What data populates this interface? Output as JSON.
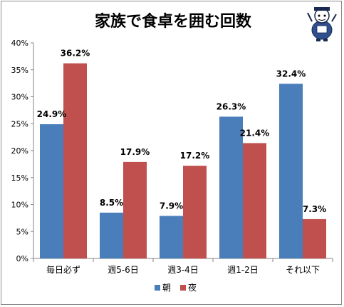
{
  "chart_data": {
    "type": "bar",
    "title": "家族で食卓を囲む回数",
    "categories": [
      "毎日必ず",
      "週5-6日",
      "週3-4日",
      "週1-2日",
      "それ以下"
    ],
    "series": [
      {
        "name": "朝",
        "values": [
          24.9,
          8.5,
          7.9,
          26.3,
          32.4
        ],
        "labels": [
          "24.9%",
          "8.5%",
          "7.9%",
          "26.3%",
          "32.4%"
        ],
        "color": "#4a7ebb"
      },
      {
        "name": "夜",
        "values": [
          36.2,
          17.9,
          17.2,
          21.4,
          7.3
        ],
        "labels": [
          "36.2%",
          "17.9%",
          "17.2%",
          "21.4%",
          "7.3%"
        ],
        "color": "#c0504d"
      }
    ],
    "ylim": [
      0,
      40
    ],
    "yticks": [
      "0%",
      "5%",
      "10%",
      "15%",
      "20%",
      "25%",
      "30%",
      "35%",
      "40%"
    ],
    "grid": false,
    "legend": "bottom",
    "xlabel": "",
    "ylabel": ""
  },
  "mascot": "cartoon-mascot-icon"
}
